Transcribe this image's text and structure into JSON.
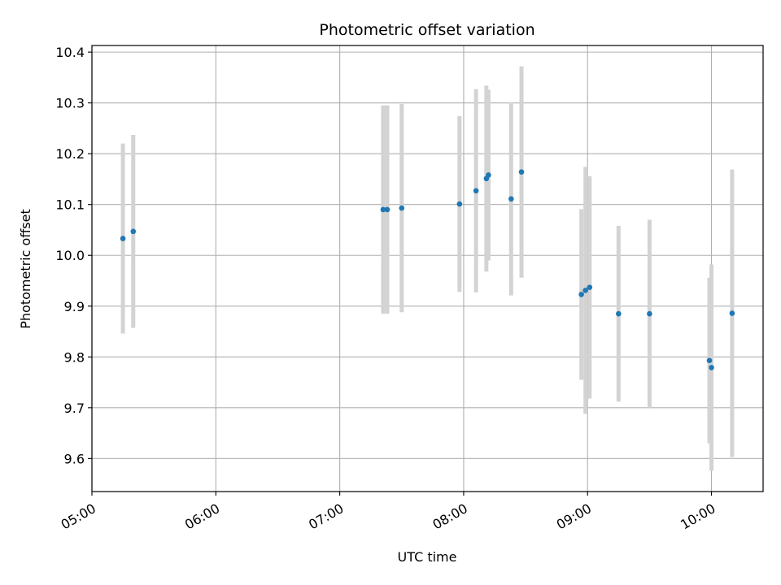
{
  "chart_data": {
    "type": "scatter",
    "title": "Photometric offset variation",
    "xlabel": "UTC time",
    "ylabel": "Photometric offset",
    "xlim": [
      "05:00",
      "10:25"
    ],
    "ylim": [
      9.535,
      10.413
    ],
    "x_ticks": [
      "05:00",
      "06:00",
      "07:00",
      "08:00",
      "09:00",
      "10:00"
    ],
    "y_ticks": [
      "9.6",
      "9.7",
      "9.8",
      "9.9",
      "10.0",
      "10.1",
      "10.2",
      "10.3",
      "10.4"
    ],
    "grid": true,
    "marker_color": "#1f77b4",
    "errorbar_color": "#d3d3d3",
    "points": [
      {
        "x": "05:15",
        "y": 10.033,
        "err": 0.187
      },
      {
        "x": "05:20",
        "y": 10.047,
        "err": 0.19
      },
      {
        "x": "07:21",
        "y": 10.09,
        "err": 0.205
      },
      {
        "x": "07:23",
        "y": 10.09,
        "err": 0.205
      },
      {
        "x": "07:30",
        "y": 10.093,
        "err": 0.205
      },
      {
        "x": "07:58",
        "y": 10.101,
        "err": 0.173
      },
      {
        "x": "08:06",
        "y": 10.127,
        "err": 0.2
      },
      {
        "x": "08:11",
        "y": 10.151,
        "err": 0.183
      },
      {
        "x": "08:12",
        "y": 10.158,
        "err": 0.168
      },
      {
        "x": "08:23",
        "y": 10.111,
        "err": 0.19
      },
      {
        "x": "08:28",
        "y": 10.164,
        "err": 0.208
      },
      {
        "x": "08:57",
        "y": 9.923,
        "err": 0.168
      },
      {
        "x": "08:59",
        "y": 9.931,
        "err": 0.243
      },
      {
        "x": "09:01",
        "y": 9.937,
        "err": 0.219
      },
      {
        "x": "09:15",
        "y": 9.885,
        "err": 0.173
      },
      {
        "x": "09:30",
        "y": 9.885,
        "err": 0.185
      },
      {
        "x": "09:59",
        "y": 9.793,
        "err": 0.163
      },
      {
        "x": "10:00",
        "y": 9.779,
        "err": 0.203
      },
      {
        "x": "10:10",
        "y": 9.886,
        "err": 0.283
      }
    ]
  }
}
